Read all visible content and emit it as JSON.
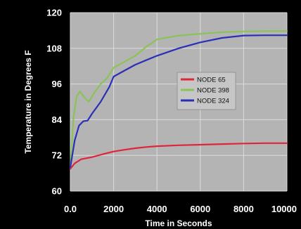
{
  "chart_data": {
    "type": "line",
    "title": "",
    "xlabel": "Time in Seconds",
    "ylabel": "Temperature in Degrees F",
    "xlim": [
      0,
      10000
    ],
    "ylim": [
      60,
      120
    ],
    "x_ticks": [
      0,
      2000,
      4000,
      6000,
      8000,
      10000
    ],
    "x_tick_labels": [
      "0.0",
      "2000",
      "4000",
      "6000",
      "8000",
      "10000"
    ],
    "y_ticks": [
      60,
      72,
      84,
      96,
      108,
      120
    ],
    "y_tick_labels": [
      "60",
      "72",
      "84",
      "96",
      "108",
      "120"
    ],
    "grid": true,
    "legend_position": "center-right",
    "plot_background": "#b4b4b4",
    "series": [
      {
        "name": "NODE 65",
        "color": "#e0253a",
        "points": [
          [
            0,
            67.5
          ],
          [
            200,
            69.3
          ],
          [
            500,
            70.7
          ],
          [
            1000,
            71.4
          ],
          [
            1500,
            72.4
          ],
          [
            2000,
            73.3
          ],
          [
            2500,
            73.9
          ],
          [
            3000,
            74.4
          ],
          [
            3500,
            74.8
          ],
          [
            4000,
            75.1
          ],
          [
            5000,
            75.4
          ],
          [
            6000,
            75.6
          ],
          [
            7000,
            75.8
          ],
          [
            8000,
            76.0
          ],
          [
            9000,
            76.1
          ],
          [
            10000,
            76.1
          ]
        ]
      },
      {
        "name": "NODE 398",
        "color": "#8cc25a",
        "points": [
          [
            0,
            68.0
          ],
          [
            150,
            85.0
          ],
          [
            300,
            92.0
          ],
          [
            450,
            93.5
          ],
          [
            650,
            91.5
          ],
          [
            850,
            90.0
          ],
          [
            1100,
            93.0
          ],
          [
            1400,
            96.0
          ],
          [
            1700,
            98.0
          ],
          [
            2000,
            101.5
          ],
          [
            2500,
            103.5
          ],
          [
            3000,
            105.5
          ],
          [
            3500,
            108.5
          ],
          [
            4000,
            111.0
          ],
          [
            5000,
            112.3
          ],
          [
            6000,
            112.9
          ],
          [
            7000,
            113.4
          ],
          [
            8000,
            113.7
          ],
          [
            9000,
            113.8
          ],
          [
            10000,
            113.8
          ]
        ]
      },
      {
        "name": "NODE 324",
        "color": "#2a2fb8",
        "points": [
          [
            0,
            68.0
          ],
          [
            200,
            77.0
          ],
          [
            400,
            82.0
          ],
          [
            600,
            83.5
          ],
          [
            800,
            83.7
          ],
          [
            1000,
            86.0
          ],
          [
            1400,
            90.0
          ],
          [
            1800,
            95.0
          ],
          [
            2000,
            98.5
          ],
          [
            2500,
            100.5
          ],
          [
            3000,
            102.5
          ],
          [
            3500,
            104.0
          ],
          [
            4000,
            105.5
          ],
          [
            5000,
            108.0
          ],
          [
            6000,
            110.0
          ],
          [
            7000,
            111.5
          ],
          [
            8000,
            112.3
          ],
          [
            9000,
            112.4
          ],
          [
            10000,
            112.4
          ]
        ]
      }
    ]
  }
}
